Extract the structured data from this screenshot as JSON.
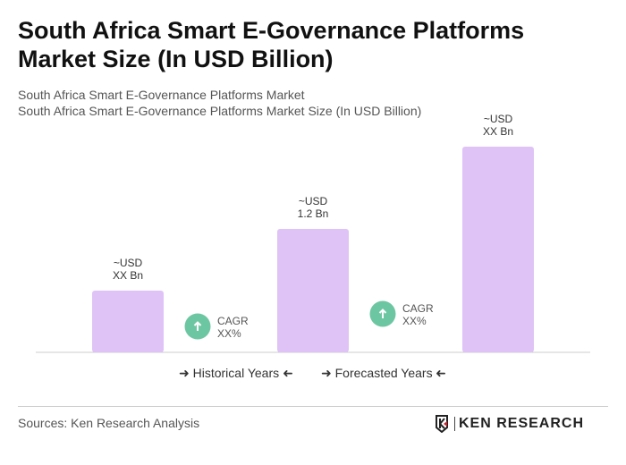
{
  "title": "South Africa Smart E-Governance Platforms Market Size (In USD Billion)",
  "subtitle1": "South Africa Smart E-Governance Platforms Market",
  "subtitle2": "South Africa Smart E-Governance Platforms Market Size (In USD Billion)",
  "chart_data": {
    "type": "bar",
    "categories": [
      "",
      "",
      ""
    ],
    "values": [
      0.6,
      1.2,
      2.0
    ],
    "data_labels": [
      [
        "~USD",
        "XX Bn"
      ],
      [
        "~USD",
        "1.2 Bn"
      ],
      [
        "~USD",
        "XX Bn"
      ]
    ],
    "bar_color": "#dfc3f7",
    "cagr": [
      {
        "label": "CAGR",
        "value": "XX%"
      },
      {
        "label": "CAGR",
        "value": "XX%"
      }
    ],
    "cagr_color": "#6dc6a2",
    "ylim": [
      0,
      2.0
    ],
    "grid": false
  },
  "legend": {
    "historical": "Historical Years",
    "forecast": "Forecasted Years"
  },
  "source": "Sources: Ken Research Analysis",
  "logo": "KEN RESEARCH"
}
